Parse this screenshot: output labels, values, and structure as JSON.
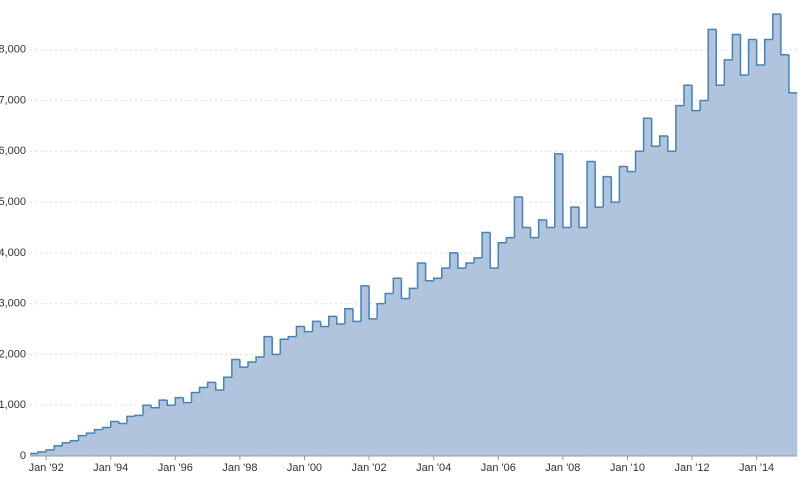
{
  "chart_data": {
    "type": "step-area",
    "color": "#b0c4de",
    "line_color": "#4682b4",
    "grid": true,
    "x": [
      "1991-07",
      "1991-10",
      "1992-01",
      "1992-04",
      "1992-07",
      "1992-10",
      "1993-01",
      "1993-04",
      "1993-07",
      "1993-10",
      "1994-01",
      "1994-04",
      "1994-07",
      "1994-10",
      "1995-01",
      "1995-04",
      "1995-07",
      "1995-10",
      "1996-01",
      "1996-04",
      "1996-07",
      "1996-10",
      "1997-01",
      "1997-04",
      "1997-07",
      "1997-10",
      "1998-01",
      "1998-04",
      "1998-07",
      "1998-10",
      "1999-01",
      "1999-04",
      "1999-07",
      "1999-10",
      "2000-01",
      "2000-04",
      "2000-07",
      "2000-10",
      "2001-01",
      "2001-04",
      "2001-07",
      "2001-10",
      "2002-01",
      "2002-04",
      "2002-07",
      "2002-10",
      "2003-01",
      "2003-04",
      "2003-07",
      "2003-10",
      "2004-01",
      "2004-04",
      "2004-07",
      "2004-10",
      "2005-01",
      "2005-04",
      "2005-07",
      "2005-10",
      "2006-01",
      "2006-04",
      "2006-07",
      "2006-10",
      "2007-01",
      "2007-04",
      "2007-07",
      "2007-10",
      "2008-01",
      "2008-04",
      "2008-07",
      "2008-10",
      "2009-01",
      "2009-04",
      "2009-07",
      "2009-10",
      "2010-01",
      "2010-04",
      "2010-07",
      "2010-10",
      "2011-01",
      "2011-04",
      "2011-07",
      "2011-10",
      "2012-01",
      "2012-04",
      "2012-07",
      "2012-10",
      "2013-01",
      "2013-04",
      "2013-07",
      "2013-10",
      "2014-01",
      "2014-04",
      "2014-07",
      "2014-10",
      "2015-01"
    ],
    "values": [
      50,
      80,
      120,
      200,
      260,
      300,
      400,
      450,
      520,
      560,
      680,
      640,
      780,
      800,
      1000,
      950,
      1100,
      1000,
      1150,
      1050,
      1250,
      1350,
      1450,
      1300,
      1550,
      1900,
      1750,
      1850,
      1950,
      2350,
      2000,
      2300,
      2350,
      2550,
      2450,
      2650,
      2550,
      2750,
      2600,
      2900,
      2650,
      3350,
      2700,
      3000,
      3200,
      3500,
      3100,
      3300,
      3800,
      3450,
      3500,
      3700,
      4000,
      3700,
      3800,
      3900,
      4400,
      3700,
      4200,
      4300,
      5100,
      4500,
      4300,
      4650,
      4500,
      5950,
      4500,
      4900,
      4500,
      5800,
      4900,
      5500,
      5000,
      5700,
      5600,
      6000,
      6650,
      6100,
      6300,
      6000,
      6900,
      7300,
      6800,
      7000,
      8400,
      7300,
      7800,
      8300,
      7500,
      8200,
      7700,
      8200,
      8700,
      7900,
      7150
    ],
    "xlim": [
      "1991-07",
      "2015-04"
    ],
    "xticks": [
      {
        "value": "1992-01",
        "label": "Jan '92"
      },
      {
        "value": "1994-01",
        "label": "Jan '94"
      },
      {
        "value": "1996-01",
        "label": "Jan '96"
      },
      {
        "value": "1998-01",
        "label": "Jan '98"
      },
      {
        "value": "2000-01",
        "label": "Jan '00"
      },
      {
        "value": "2002-01",
        "label": "Jan '02"
      },
      {
        "value": "2004-01",
        "label": "Jan '04"
      },
      {
        "value": "2006-01",
        "label": "Jan '06"
      },
      {
        "value": "2008-01",
        "label": "Jan '08"
      },
      {
        "value": "2010-01",
        "label": "Jan '10"
      },
      {
        "value": "2012-01",
        "label": "Jan '12"
      },
      {
        "value": "2014-01",
        "label": "Jan '14"
      }
    ],
    "ylim": [
      0,
      8900
    ],
    "yticks": [
      0,
      {
        "value": 1000,
        "label": "1,000"
      },
      {
        "value": 2000,
        "label": "2,000"
      },
      {
        "value": 3000,
        "label": "3,000"
      },
      {
        "value": 4000,
        "label": "4,000"
      },
      {
        "value": 5000,
        "label": "5,000"
      },
      {
        "value": 6000,
        "label": "6,000"
      },
      {
        "value": 7000,
        "label": "7,000"
      },
      {
        "value": 8000,
        "label": "8,000"
      }
    ]
  }
}
